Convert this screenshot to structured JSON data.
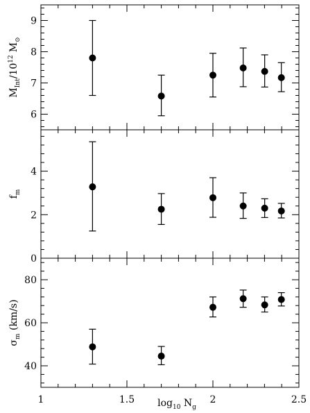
{
  "chart_data": [
    {
      "type": "scatter",
      "panel": "top",
      "ylabel_main": "M",
      "ylabel_sub": "Int",
      "ylabel_tail": "/10",
      "ylabel_sup": "12",
      "ylabel_unit": "M",
      "ylabel_unit_sym": "⊙",
      "xlim": [
        1,
        2.5
      ],
      "ylim": [
        5.5,
        9.5
      ],
      "yticks": [
        6,
        7,
        8,
        9
      ],
      "ytick_labels": [
        "6",
        "7",
        "8",
        "9"
      ],
      "points": [
        {
          "x": 1.3,
          "y": 7.8,
          "lo": 6.6,
          "hi": 9.0
        },
        {
          "x": 1.7,
          "y": 6.58,
          "lo": 5.95,
          "hi": 7.25
        },
        {
          "x": 2.0,
          "y": 7.25,
          "lo": 6.55,
          "hi": 7.95
        },
        {
          "x": 2.176,
          "y": 7.48,
          "lo": 6.88,
          "hi": 8.12
        },
        {
          "x": 2.301,
          "y": 7.37,
          "lo": 6.87,
          "hi": 7.9
        },
        {
          "x": 2.398,
          "y": 7.17,
          "lo": 6.72,
          "hi": 7.65
        }
      ]
    },
    {
      "type": "scatter",
      "panel": "middle",
      "ylabel_main": "f",
      "ylabel_sub": "m",
      "xlim": [
        1,
        2.5
      ],
      "ylim": [
        0,
        5.9
      ],
      "yticks": [
        0,
        2,
        4
      ],
      "ytick_labels": [
        "0",
        "2",
        "4"
      ],
      "points": [
        {
          "x": 1.3,
          "y": 3.28,
          "lo": 1.25,
          "hi": 5.35
        },
        {
          "x": 1.7,
          "y": 2.25,
          "lo": 1.55,
          "hi": 2.97
        },
        {
          "x": 2.0,
          "y": 2.78,
          "lo": 1.88,
          "hi": 3.7
        },
        {
          "x": 2.176,
          "y": 2.4,
          "lo": 1.83,
          "hi": 3.0
        },
        {
          "x": 2.301,
          "y": 2.3,
          "lo": 1.87,
          "hi": 2.73
        },
        {
          "x": 2.398,
          "y": 2.17,
          "lo": 1.85,
          "hi": 2.52
        }
      ]
    },
    {
      "type": "scatter",
      "panel": "bottom",
      "ylabel_main": "σ",
      "ylabel_sub": "m",
      "ylabel_tail": " (km/s)",
      "xlabel_main": "log",
      "xlabel_sub": "10",
      "xlabel_tail": " N",
      "xlabel_sub2": "g",
      "xlim": [
        1,
        2.5
      ],
      "ylim": [
        30,
        90
      ],
      "yticks": [
        40,
        60,
        80
      ],
      "ytick_labels": [
        "40",
        "60",
        "80"
      ],
      "xticks": [
        1,
        1.5,
        2,
        2.5
      ],
      "xtick_labels": [
        "1",
        "1.5",
        "2",
        "2.5"
      ],
      "points": [
        {
          "x": 1.3,
          "y": 48.8,
          "lo": 40.8,
          "hi": 57.0
        },
        {
          "x": 1.7,
          "y": 44.5,
          "lo": 40.5,
          "hi": 49.0
        },
        {
          "x": 2.0,
          "y": 67.2,
          "lo": 62.7,
          "hi": 72.0
        },
        {
          "x": 2.176,
          "y": 71.2,
          "lo": 67.2,
          "hi": 75.2
        },
        {
          "x": 2.301,
          "y": 68.3,
          "lo": 65.0,
          "hi": 72.0
        },
        {
          "x": 2.398,
          "y": 70.8,
          "lo": 67.8,
          "hi": 74.0
        }
      ]
    }
  ]
}
